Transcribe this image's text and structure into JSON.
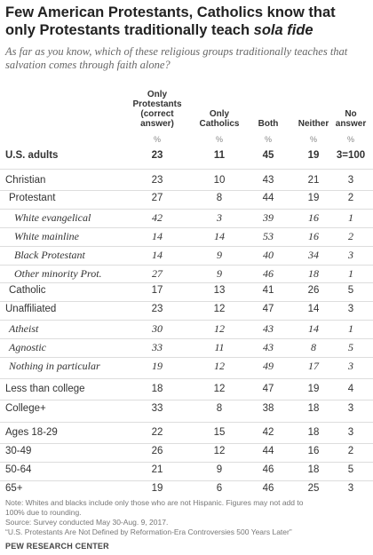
{
  "title_part1": "Few American Protestants, Catholics know that only Protestants traditionally teach ",
  "title_italic": "sola fide",
  "subtitle": "As far as you know, which of these religious groups traditionally teaches that salvation comes through faith alone?",
  "chart_data": {
    "type": "table",
    "columns": [
      {
        "key": "only_protestants",
        "label_lines": [
          "Only",
          "Protestants",
          "(correct",
          "answer)"
        ]
      },
      {
        "key": "only_catholics",
        "label_lines": [
          "Only",
          "Catholics"
        ]
      },
      {
        "key": "both",
        "label_lines": [
          "Both"
        ]
      },
      {
        "key": "neither",
        "label_lines": [
          "Neither"
        ]
      },
      {
        "key": "no_answer",
        "label_lines": [
          "No",
          "answer"
        ]
      }
    ],
    "unit_label": "%",
    "rows": [
      {
        "label": "U.S. adults",
        "values": [
          "23",
          "11",
          "45",
          "19",
          "3=100"
        ],
        "style": "bold",
        "indent": 0
      },
      {
        "label": "Christian",
        "values": [
          "23",
          "10",
          "43",
          "21",
          "3"
        ],
        "style": "normal",
        "indent": 0
      },
      {
        "label": "Protestant",
        "values": [
          "27",
          "8",
          "44",
          "19",
          "2"
        ],
        "style": "normal",
        "indent": 1
      },
      {
        "label": "White evangelical",
        "values": [
          "42",
          "3",
          "39",
          "16",
          "1"
        ],
        "style": "italic",
        "indent": 2
      },
      {
        "label": "White mainline",
        "values": [
          "14",
          "14",
          "53",
          "16",
          "2"
        ],
        "style": "italic",
        "indent": 2
      },
      {
        "label": "Black Protestant",
        "values": [
          "14",
          "9",
          "40",
          "34",
          "3"
        ],
        "style": "italic",
        "indent": 2
      },
      {
        "label": "Other minority Prot.",
        "values": [
          "27",
          "9",
          "46",
          "18",
          "1"
        ],
        "style": "italic",
        "indent": 2
      },
      {
        "label": "Catholic",
        "values": [
          "17",
          "13",
          "41",
          "26",
          "5"
        ],
        "style": "normal",
        "indent": 1
      },
      {
        "label": "Unaffiliated",
        "values": [
          "23",
          "12",
          "47",
          "14",
          "3"
        ],
        "style": "normal",
        "indent": 0
      },
      {
        "label": "Atheist",
        "values": [
          "30",
          "12",
          "43",
          "14",
          "1"
        ],
        "style": "italic",
        "indent": 1
      },
      {
        "label": "Agnostic",
        "values": [
          "33",
          "11",
          "43",
          "8",
          "5"
        ],
        "style": "italic",
        "indent": 1
      },
      {
        "label": "Nothing in particular",
        "values": [
          "19",
          "12",
          "49",
          "17",
          "3"
        ],
        "style": "italic",
        "indent": 1
      },
      {
        "label": "Less than college",
        "values": [
          "18",
          "12",
          "47",
          "19",
          "4"
        ],
        "style": "normal",
        "indent": 0
      },
      {
        "label": "College+",
        "values": [
          "33",
          "8",
          "38",
          "18",
          "3"
        ],
        "style": "normal",
        "indent": 0
      },
      {
        "label": "Ages 18-29",
        "values": [
          "22",
          "15",
          "42",
          "18",
          "3"
        ],
        "style": "normal",
        "indent": 0
      },
      {
        "label": "30-49",
        "values": [
          "26",
          "12",
          "44",
          "16",
          "2"
        ],
        "style": "normal",
        "indent": 0
      },
      {
        "label": "50-64",
        "values": [
          "21",
          "9",
          "46",
          "18",
          "5"
        ],
        "style": "normal",
        "indent": 0
      },
      {
        "label": "65+",
        "values": [
          "19",
          "6",
          "46",
          "25",
          "3"
        ],
        "style": "normal",
        "indent": 0
      }
    ]
  },
  "notes": {
    "line1": "Note: Whites and blacks include only those who are not Hispanic. Figures may not add to",
    "line2": "100% due to rounding.",
    "line3": "Source: Survey conducted May 30-Aug. 9, 2017.",
    "line4": "“U.S. Protestants Are Not Defined by Reformation-Era Controversies 500 Years Later”"
  },
  "brand": "PEW RESEARCH CENTER"
}
